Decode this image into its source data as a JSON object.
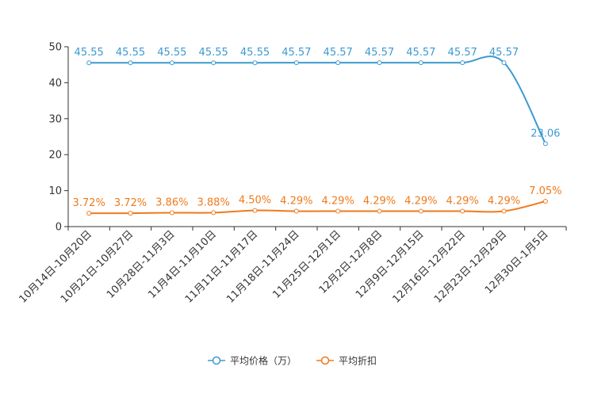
{
  "chart_data": {
    "type": "line",
    "categories": [
      "10月14日-10月20日",
      "10月21日-10月27日",
      "10月28日-11月3日",
      "11月4日-11月10日",
      "11月11日-11月17日",
      "11月18日-11月24日",
      "11月25日-12月1日",
      "12月2日-12月8日",
      "12月9日-12月15日",
      "12月16日-12月22日",
      "12月23日-12月29日",
      "12月30日-1月5日"
    ],
    "y_ticks": [
      0,
      10,
      20,
      30,
      40,
      50
    ],
    "ylim": [
      0,
      50
    ],
    "series": [
      {
        "name": "平均价格（万）",
        "color": "#3d9ad1",
        "values": [
          45.55,
          45.55,
          45.55,
          45.55,
          45.55,
          45.57,
          45.57,
          45.57,
          45.57,
          45.57,
          45.57,
          23.06
        ],
        "labels": [
          "45.55",
          "45.55",
          "45.55",
          "45.55",
          "45.55",
          "45.57",
          "45.57",
          "45.57",
          "45.57",
          "45.57",
          "45.57",
          "23.06"
        ]
      },
      {
        "name": "平均折扣",
        "color": "#f07a1a",
        "values": [
          3.72,
          3.72,
          3.86,
          3.88,
          4.5,
          4.29,
          4.29,
          4.29,
          4.29,
          4.29,
          4.29,
          7.05
        ],
        "labels": [
          "3.72%",
          "3.72%",
          "3.86%",
          "3.88%",
          "4.50%",
          "4.29%",
          "4.29%",
          "4.29%",
          "4.29%",
          "4.29%",
          "4.29%",
          "7.05%"
        ]
      }
    ],
    "legend": {
      "position": "bottom-center"
    },
    "grid": false
  }
}
